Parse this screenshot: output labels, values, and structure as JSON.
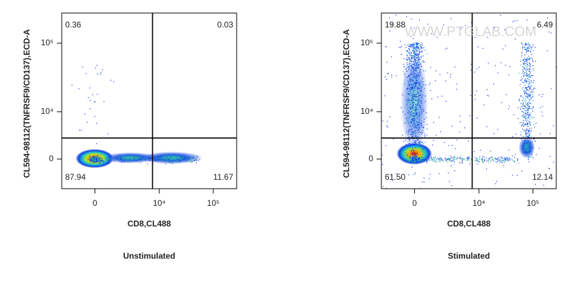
{
  "chart_data": [
    {
      "type": "scatter",
      "title": "Unstimulated",
      "xlabel": "CD8,CL488",
      "ylabel": "CL594-98112(TNFRSF9/CD137),ECD-A",
      "xscale": "biexponential",
      "yscale": "biexponential",
      "xlim": [
        -2500,
        270000
      ],
      "ylim": [
        -5000,
        270000
      ],
      "xticks": [
        0,
        {
          "value": 10000,
          "label": "10⁴"
        },
        {
          "value": 100000,
          "label": "10⁵"
        }
      ],
      "yticks": [
        0,
        {
          "value": 10000,
          "label": "10⁴"
        },
        {
          "value": 100000,
          "label": "10⁵"
        }
      ],
      "gate": {
        "x": 7500,
        "y": 3300
      },
      "quadrants": {
        "values": [
          0.36,
          0.03,
          87.94,
          11.67
        ],
        "value_labels": [
          "0.36",
          "0.03",
          "87.94",
          "11.67"
        ]
      }
    },
    {
      "type": "scatter",
      "title": "Stimulated",
      "xlabel": "CD8,CL488",
      "ylabel": "CL594-98112(TNFRSF9/CD137),ECD-A",
      "xscale": "biexponential",
      "yscale": "biexponential",
      "xlim": [
        -2500,
        270000
      ],
      "ylim": [
        -5000,
        270000
      ],
      "xticks": [
        0,
        {
          "value": 10000,
          "label": "10⁴"
        },
        {
          "value": 100000,
          "label": "10⁵"
        }
      ],
      "yticks": [
        0,
        {
          "value": 10000,
          "label": "10⁴"
        },
        {
          "value": 100000,
          "label": "10⁵"
        }
      ],
      "gate": {
        "x": 7500,
        "y": 3300
      },
      "quadrants": {
        "values": [
          19.88,
          6.49,
          61.5,
          12.14
        ],
        "value_labels": [
          "19.88",
          "6.49",
          "61.50",
          "12.14"
        ]
      },
      "watermark": "WWW.PTGLAB.COM"
    }
  ]
}
